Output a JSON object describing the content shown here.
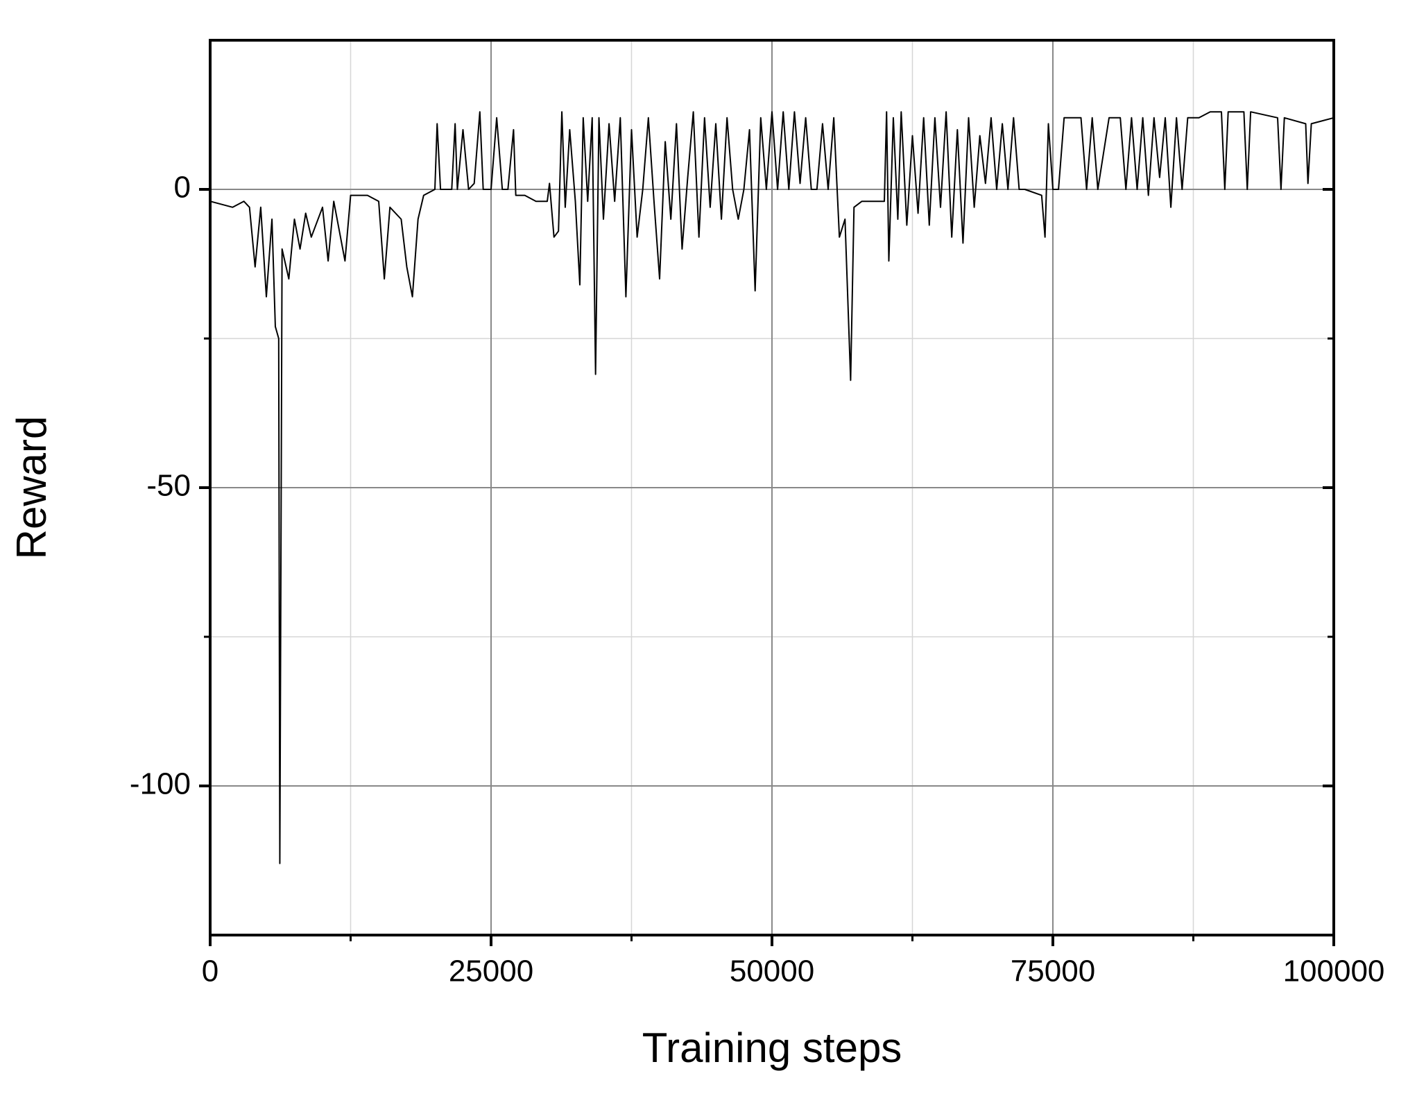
{
  "chart_data": {
    "type": "line",
    "x_label": "Training steps",
    "y_label": "Reward",
    "color": "#000000",
    "grid": true,
    "xlim": [
      0,
      100000
    ],
    "xticks": [
      0,
      25000,
      50000,
      75000,
      100000
    ],
    "xminorticks": [
      12500,
      37500,
      62500,
      87500
    ],
    "ylim": [
      -125,
      25
    ],
    "yticks": [
      -100,
      -50,
      0
    ],
    "yminorticks": [
      -75,
      -25
    ],
    "x": [
      0,
      2000,
      3000,
      3500,
      4000,
      4500,
      5000,
      5500,
      5800,
      6100,
      6200,
      6400,
      7000,
      7500,
      8000,
      8500,
      9000,
      10000,
      10500,
      11000,
      12000,
      12500,
      14000,
      15000,
      15500,
      16000,
      17000,
      17500,
      18000,
      18500,
      19000,
      20000,
      20200,
      20500,
      21500,
      21800,
      22000,
      22500,
      23000,
      23500,
      24000,
      24300,
      25000,
      25500,
      26000,
      26500,
      27000,
      27200,
      28000,
      29000,
      30000,
      30200,
      30600,
      31000,
      31300,
      31600,
      32000,
      32500,
      32900,
      33200,
      33600,
      34000,
      34300,
      34600,
      35000,
      35500,
      36000,
      36500,
      37000,
      37500,
      38000,
      38500,
      39000,
      39500,
      40000,
      40500,
      41000,
      41500,
      42000,
      42500,
      43000,
      43500,
      44000,
      44500,
      45000,
      45500,
      46000,
      46500,
      47000,
      47500,
      48000,
      48500,
      49000,
      49500,
      50000,
      50500,
      51000,
      51500,
      52000,
      52500,
      53000,
      53500,
      54000,
      54500,
      55000,
      55500,
      56000,
      56500,
      57000,
      57300,
      58000,
      59000,
      60000,
      60200,
      60400,
      60800,
      61200,
      61500,
      62000,
      62500,
      63000,
      63500,
      64000,
      64500,
      65000,
      65500,
      66000,
      66500,
      67000,
      67500,
      68000,
      68500,
      69000,
      69500,
      70000,
      70500,
      71000,
      71500,
      72000,
      72500,
      74000,
      74300,
      74600,
      75000,
      75500,
      76000,
      76500,
      77500,
      78000,
      78500,
      79000,
      80000,
      81000,
      81500,
      82000,
      82500,
      83000,
      83500,
      84000,
      84500,
      85000,
      85500,
      86000,
      86500,
      87000,
      88000,
      89000,
      90000,
      90300,
      90600,
      92000,
      92300,
      92600,
      95000,
      95300,
      95600,
      97500,
      97700,
      98000,
      100000
    ],
    "values": [
      -2,
      -3,
      -2,
      -3,
      -13,
      -3,
      -18,
      -5,
      -23,
      -25,
      -113,
      -10,
      -15,
      -5,
      -10,
      -4,
      -8,
      -3,
      -12,
      -2,
      -12,
      -1,
      -1,
      -2,
      -15,
      -3,
      -5,
      -13,
      -18,
      -5,
      -1,
      0,
      11,
      0,
      0,
      11,
      0,
      10,
      0,
      1,
      13,
      0,
      0,
      12,
      0,
      0,
      10,
      -1,
      -1,
      -2,
      -2,
      1,
      -8,
      -7,
      13,
      -3,
      10,
      -2,
      -16,
      12,
      -2,
      12,
      -31,
      12,
      -5,
      11,
      -2,
      12,
      -18,
      10,
      -8,
      0,
      12,
      -2,
      -15,
      8,
      -5,
      11,
      -10,
      2,
      13,
      -8,
      12,
      -3,
      11,
      -5,
      12,
      0,
      -5,
      0,
      10,
      -17,
      12,
      0,
      13,
      0,
      13,
      0,
      13,
      1,
      12,
      0,
      0,
      11,
      0,
      12,
      -8,
      -5,
      -32,
      -3,
      -2,
      -2,
      -2,
      13,
      -12,
      12,
      -5,
      13,
      -6,
      9,
      -4,
      12,
      -6,
      12,
      -3,
      13,
      -8,
      10,
      -9,
      12,
      -3,
      9,
      1,
      12,
      0,
      11,
      0,
      12,
      0,
      0,
      -1,
      -8,
      11,
      0,
      0,
      12,
      12,
      12,
      0,
      12,
      0,
      12,
      12,
      0,
      12,
      0,
      12,
      -1,
      12,
      2,
      12,
      -3,
      12,
      0,
      12,
      12,
      13,
      13,
      0,
      13,
      13,
      0,
      13,
      12,
      0,
      12,
      11,
      1,
      11,
      12
    ]
  }
}
